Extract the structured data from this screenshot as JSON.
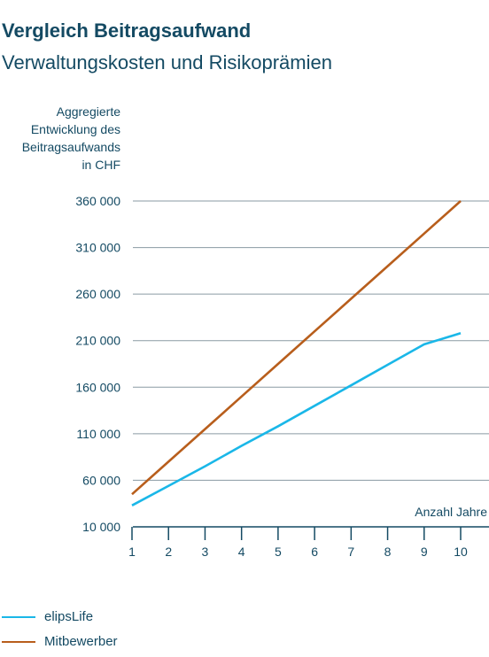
{
  "chart_data": {
    "type": "line",
    "title": "Vergleich Beitragsaufwand",
    "subtitle": "Verwaltungskosten und Risikoprämien",
    "ylabel": "Aggregierte\nEntwicklung des\nBeitragsaufwands\nin CHF",
    "xlabel": "Anzahl Jahre",
    "x": [
      1,
      2,
      3,
      4,
      5,
      6,
      7,
      8,
      9,
      10
    ],
    "ylim": [
      10000,
      360000
    ],
    "yticks": [
      10000,
      60000,
      110000,
      160000,
      210000,
      260000,
      310000,
      360000
    ],
    "ytick_labels": [
      "10 000",
      "60 000",
      "110 000",
      "160 000",
      "210 000",
      "260 000",
      "310 000",
      "360 000"
    ],
    "xtick_labels": [
      "1",
      "2",
      "3",
      "4",
      "5",
      "6",
      "7",
      "8",
      "9",
      "10"
    ],
    "grid": true,
    "legend_position": "bottom-left",
    "series": [
      {
        "name": "elipsLife",
        "color": "#1ab7e8",
        "values": [
          33000,
          54000,
          75000,
          97000,
          118000,
          140000,
          162000,
          184000,
          206000,
          218000
        ]
      },
      {
        "name": "Mitbewerber",
        "color": "#b85e1c",
        "values": [
          45000,
          80000,
          115000,
          150000,
          185000,
          220000,
          255000,
          290000,
          325000,
          360000
        ]
      }
    ]
  }
}
